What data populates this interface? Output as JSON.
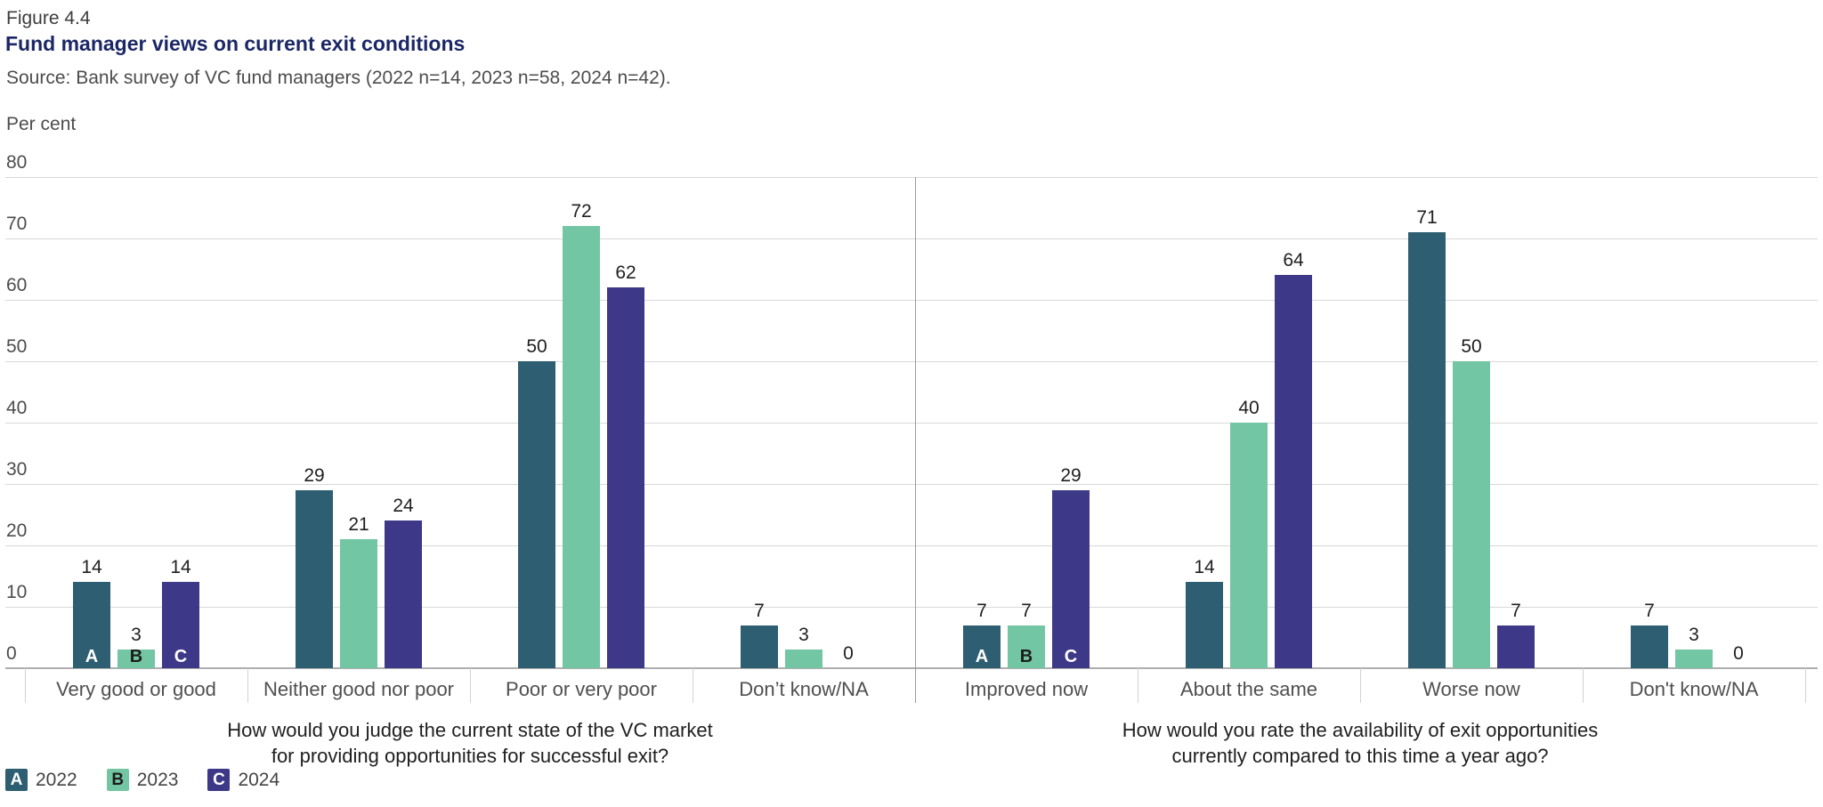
{
  "header": {
    "figure_label": "Figure 4.4",
    "title": "Fund manager views on current exit conditions",
    "source": "Source: Bank survey of VC fund managers (2022 n=14, 2023 n=58, 2024 n=42)."
  },
  "chart_data": {
    "type": "bar",
    "unit_label": "Per cent",
    "ylim": [
      0,
      80
    ],
    "ytick_step": 10,
    "grid": true,
    "yticks": [
      0,
      10,
      20,
      30,
      40,
      50,
      60,
      70,
      80
    ],
    "series_names": [
      "2022",
      "2023",
      "2024"
    ],
    "series_letters": [
      "A",
      "B",
      "C"
    ],
    "series_colors": [
      "#2d5e72",
      "#73c6a3",
      "#3d3887"
    ],
    "series_letter_text_colors": [
      "#ffffff",
      "#1c1c1c",
      "#ffffff"
    ],
    "panels": [
      {
        "caption_lines": [
          "How would you judge the current state of the VC market",
          "for providing opportunities for successful exit?"
        ],
        "categories": [
          "Very good or good",
          "Neither good nor poor",
          "Poor or very poor",
          "Don’t know/NA"
        ],
        "series": [
          {
            "name": "2022",
            "letter": "A",
            "values": [
              14,
              29,
              50,
              7
            ]
          },
          {
            "name": "2023",
            "letter": "B",
            "values": [
              3,
              21,
              72,
              3
            ]
          },
          {
            "name": "2024",
            "letter": "C",
            "values": [
              14,
              24,
              62,
              0
            ]
          }
        ]
      },
      {
        "caption_lines": [
          "How would you rate the availability of exit opportunities",
          "currently compared to this time a year ago?"
        ],
        "categories": [
          "Improved now",
          "About the same",
          "Worse now",
          "Don't know/NA"
        ],
        "series": [
          {
            "name": "2022",
            "letter": "A",
            "values": [
              7,
              14,
              71,
              7
            ]
          },
          {
            "name": "2023",
            "letter": "B",
            "values": [
              7,
              40,
              50,
              3
            ]
          },
          {
            "name": "2024",
            "letter": "C",
            "values": [
              29,
              64,
              7,
              0
            ]
          }
        ]
      }
    ]
  },
  "legend": {
    "items": [
      {
        "letter": "A",
        "label": "2022"
      },
      {
        "letter": "B",
        "label": "2023"
      },
      {
        "letter": "C",
        "label": "2024"
      }
    ]
  }
}
